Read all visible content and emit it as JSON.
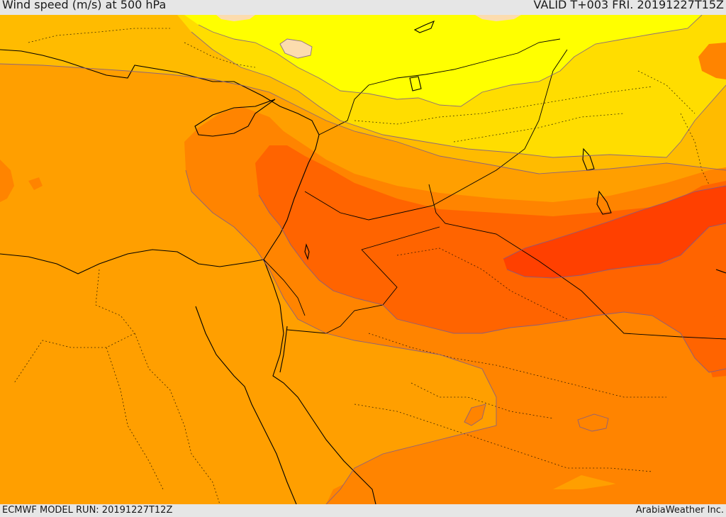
{
  "header": {
    "title": "Wind speed (m/s) at 500 hPa",
    "valid": "VALID T+003 FRI. 20191227T15Z"
  },
  "footer": {
    "model_run": "ECMWF MODEL RUN: 20191227T12Z",
    "credit": "ArabiaWeather Inc."
  },
  "map": {
    "field": "Wind speed (m/s) at 500 hPa",
    "colors": {
      "light": "#fcdcae",
      "yellow": "#ffff00",
      "yellow_orange": "#ffdd00",
      "amber": "#ffbb00",
      "orange": "#ff9f00",
      "dark_orange": "#ff8400",
      "orange_red": "#ff6400",
      "red": "#ff4000",
      "contour": "#7a5a90",
      "border": "#000000"
    }
  }
}
